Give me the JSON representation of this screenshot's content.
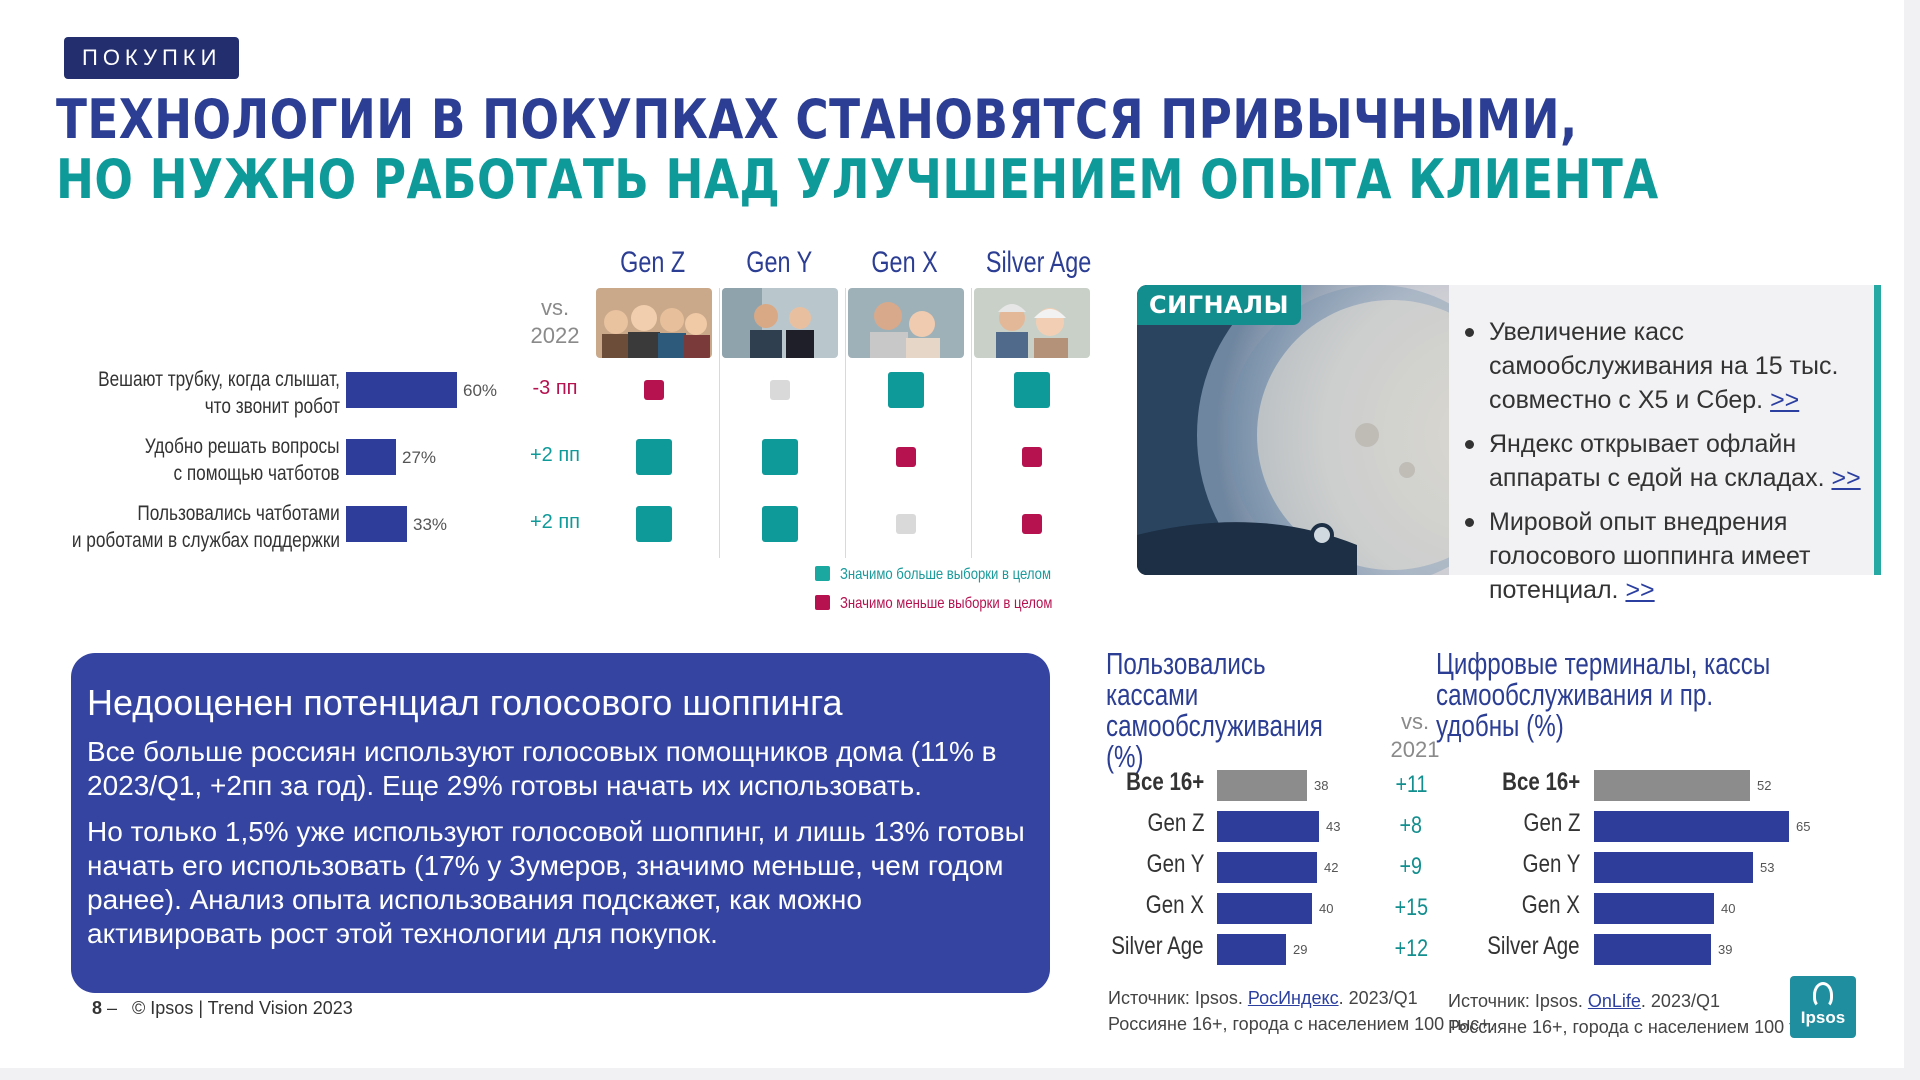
{
  "header": {
    "badge": "ПОКУПКИ",
    "title_line1": "ТЕХНОЛОГИИ В ПОКУПКАХ СТАНОВЯТСЯ ПРИВЫЧНЫМИ,",
    "title_line2": "НО НУЖНО РАБОТАТЬ НАД УЛУЧШЕНИЕМ ОПЫТА КЛИЕНТА"
  },
  "colors": {
    "navy": "#2c3e94",
    "teal": "#0f9a9a",
    "crimson": "#b5124f",
    "gray": "#d9d9d9",
    "bar_blue": "#2e3d9a",
    "bar_gray": "#8c8c8c"
  },
  "generations": {
    "vs_label_line1": "vs.",
    "vs_label_line2": "2022",
    "columns": [
      "Gen Z",
      "Gen Y",
      "Gen X",
      "Silver Age"
    ]
  },
  "chart_data": [
    {
      "type": "bar",
      "categories": [
        "Вешают трубку, когда слышат, что звонит робот",
        "Удобно решать вопросы с помощью чатботов",
        "Пользовались чатботами и роботами в службах поддержки"
      ],
      "values": [
        60,
        27,
        33
      ],
      "value_labels": [
        "60%",
        "27%",
        "33%"
      ],
      "deltas": [
        "-3 пп",
        "+2 пп",
        "+2 пп"
      ],
      "significance": [
        [
          "lower",
          "neutral",
          "higher",
          "higher"
        ],
        [
          "higher",
          "higher",
          "lower",
          "lower"
        ],
        [
          "higher",
          "higher",
          "neutral",
          "lower"
        ]
      ],
      "legend": {
        "higher": "Значимо больше выборки в целом",
        "lower": "Значимо меньше выборки в целом"
      }
    },
    {
      "type": "bar",
      "title": "Пользовались кассами самообслуживания (%)",
      "categories": [
        "Все 16+",
        "Gen Z",
        "Gen Y",
        "Gen X",
        "Silver Age"
      ],
      "values": [
        38,
        43,
        42,
        40,
        29
      ],
      "deltas": [
        "+11",
        "+8",
        "+9",
        "+15",
        "+12"
      ],
      "delta_header": [
        "vs.",
        "2021"
      ]
    },
    {
      "type": "bar",
      "title": "Цифровые терминалы, кассы самообслуживания и пр. удобны (%)",
      "categories": [
        "Все 16+",
        "Gen Z",
        "Gen Y",
        "Gen X",
        "Silver Age"
      ],
      "values": [
        52,
        65,
        53,
        40,
        39
      ]
    }
  ],
  "questions": [
    {
      "line1": "Вешают трубку, когда слышат,",
      "line2": "что звонит робот"
    },
    {
      "line1": "Удобно решать вопросы",
      "line2": "с помощью чатботов"
    },
    {
      "line1": "Пользовались чатботами",
      "line2": "и роботами  в службах поддержки"
    }
  ],
  "signals": {
    "tag": "СИГНАЛЫ",
    "items": [
      {
        "text": "Увеличение касс самообслуживания на 15 тыс. совместно с Х5 и Сбер.",
        "link": ">>"
      },
      {
        "text": "Яндекс открывает офлайн аппараты с едой на складах.",
        "link": ">>"
      },
      {
        "text": "Мировой опыт внедрения голосового шоппинга имеет потенциал.",
        "link": ">>"
      }
    ]
  },
  "voice": {
    "title": "Недооценен потенциал голосового шоппинга",
    "p1": "Все больше россиян используют голосовых помощников дома (11% в 2023/Q1, +2пп за год). Еще 29% готовы начать их использовать.",
    "p2": "Но только 1,5% уже используют голосовой шоппинг, и лишь 13% готовы начать его использовать (17% у Зумеров, значимо меньше, чем годом ранее). Анализ опыта использования подскажет, как можно активировать рост этой технологии для покупок."
  },
  "footer": {
    "page": "8",
    "copyright": "©  Ipsos | Trend Vision 2023"
  },
  "sources": {
    "left_prefix": "Источник: Ipsos. ",
    "left_link": "РосИндекс",
    "left_suffix": ". 2023/Q1",
    "left_line2": "Россияне 16+, города с населением 100 тыс+.",
    "right_prefix": "Источник: Ipsos. ",
    "right_link": "OnLife",
    "right_suffix": ". 2023/Q1",
    "right_line2": "Россияне 16+, города с населением 100 тыс+."
  },
  "logo": {
    "text": "Ipsos"
  }
}
